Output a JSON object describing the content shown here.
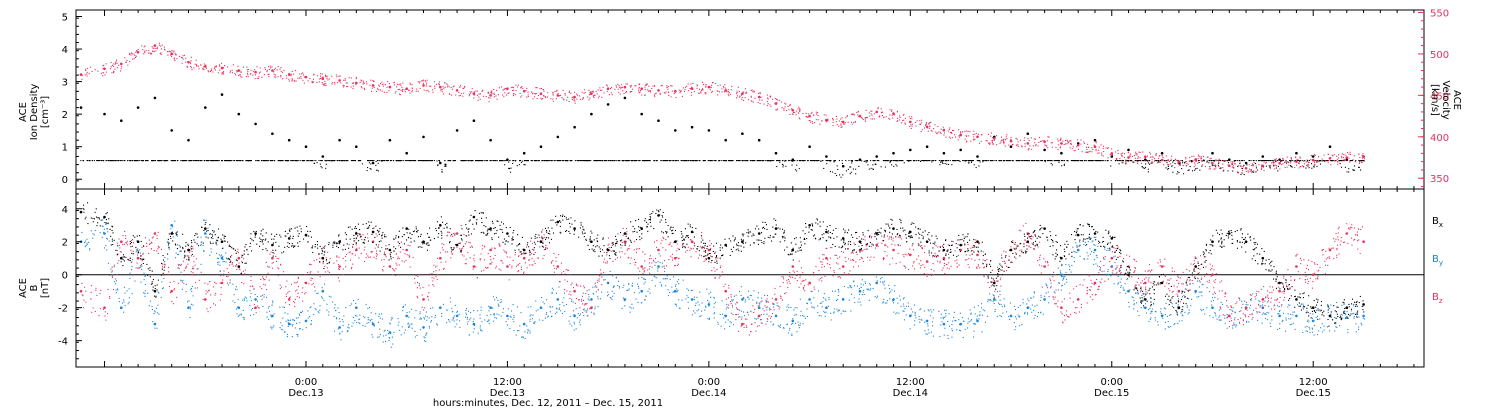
{
  "colors": {
    "black": "#000000",
    "pink": "#e8305c",
    "blue": "#1a85d9"
  },
  "xaxis": {
    "title": "hours:minutes, Dec. 12, 2011 – Dec. 15, 2011",
    "ticks": [
      {
        "t": 12,
        "time": "0:00",
        "date": "Dec.13"
      },
      {
        "t": 24,
        "time": "12:00",
        "date": "Dec.13"
      },
      {
        "t": 36,
        "time": "0:00",
        "date": "Dec.14"
      },
      {
        "t": 48,
        "time": "12:00",
        "date": "Dec.14"
      },
      {
        "t": 60,
        "time": "0:00",
        "date": "Dec.15"
      },
      {
        "t": 72,
        "time": "12:00",
        "date": "Dec.15"
      }
    ]
  },
  "chart_data": [
    {
      "type": "scatter",
      "panel": "top",
      "xlim": [
        -1.7,
        78.6
      ],
      "ylabel_left": [
        "ACE",
        "Ion Density",
        "[cm⁻³]"
      ],
      "ylim_left": [
        -0.3,
        5.2
      ],
      "yticks_left": [
        0,
        1,
        2,
        3,
        4,
        5
      ],
      "ylabel_right": [
        "ACE",
        "Velocity",
        "[km/s]"
      ],
      "ylim_right": [
        337,
        553
      ],
      "yticks_right": [
        350,
        400,
        450,
        500,
        550
      ],
      "series": [
        {
          "axis": "left",
          "color": "black",
          "x": [
            -1.4,
            0,
            1,
            2,
            3,
            4,
            5,
            6,
            7,
            8,
            9,
            10,
            11,
            12,
            13,
            14,
            15,
            16,
            17,
            18,
            19,
            20,
            21,
            22,
            23,
            24,
            25,
            26,
            27,
            28,
            29,
            30,
            31,
            32,
            33,
            34,
            35,
            36,
            37,
            38,
            39,
            40,
            41,
            42,
            43,
            44,
            45,
            46,
            47,
            48,
            49,
            50,
            51,
            52,
            53,
            54,
            55,
            56,
            57,
            58,
            59,
            60,
            61,
            62,
            63,
            64,
            65,
            66,
            67,
            68,
            69,
            70,
            71,
            72,
            73,
            74,
            75
          ],
          "y": [
            2.2,
            2.0,
            1.8,
            2.2,
            2.5,
            1.5,
            1.2,
            2.2,
            2.6,
            2.0,
            1.7,
            1.4,
            1.2,
            1.0,
            0.7,
            1.2,
            1.0,
            0.5,
            1.2,
            0.8,
            1.3,
            0.5,
            1.5,
            1.8,
            1.2,
            0.6,
            0.8,
            1.0,
            1.3,
            1.6,
            2.0,
            2.3,
            2.5,
            2.0,
            1.8,
            1.5,
            1.6,
            1.5,
            1.2,
            1.4,
            1.2,
            0.8,
            0.6,
            1.0,
            0.7,
            0.4,
            0.6,
            0.7,
            0.8,
            0.9,
            1.0,
            0.8,
            0.9,
            0.7,
            1.3,
            1.0,
            1.4,
            0.9,
            0.8,
            1.1,
            1.2,
            0.7,
            0.9,
            0.6,
            0.8,
            0.5,
            0.6,
            0.8,
            0.6,
            0.5,
            0.7,
            0.6,
            0.8,
            0.7,
            1.0,
            0.6,
            0.7
          ]
        },
        {
          "axis": "right",
          "color": "pink",
          "x": [
            -1.4,
            0,
            1,
            2,
            3,
            4,
            5,
            6,
            7,
            8,
            9,
            10,
            11,
            12,
            13,
            14,
            15,
            16,
            17,
            18,
            19,
            20,
            21,
            22,
            23,
            24,
            25,
            26,
            27,
            28,
            29,
            30,
            31,
            32,
            33,
            34,
            35,
            36,
            37,
            38,
            39,
            40,
            41,
            42,
            43,
            44,
            45,
            46,
            47,
            48,
            49,
            50,
            51,
            52,
            53,
            54,
            55,
            56,
            57,
            58,
            59,
            60,
            61,
            62,
            63,
            64,
            65,
            66,
            67,
            68,
            69,
            70,
            71,
            72,
            73,
            74,
            75
          ],
          "y": [
            475,
            482,
            488,
            502,
            510,
            500,
            490,
            485,
            483,
            480,
            478,
            480,
            475,
            472,
            470,
            468,
            465,
            462,
            460,
            458,
            462,
            460,
            456,
            452,
            450,
            458,
            455,
            452,
            450,
            448,
            452,
            458,
            460,
            458,
            456,
            455,
            458,
            460,
            456,
            452,
            448,
            440,
            432,
            425,
            420,
            418,
            425,
            430,
            428,
            418,
            412,
            408,
            402,
            400,
            398,
            395,
            392,
            394,
            392,
            390,
            388,
            380,
            375,
            376,
            372,
            370,
            372,
            368,
            365,
            362,
            365,
            368,
            370,
            372,
            374,
            375,
            376
          ]
        }
      ]
    },
    {
      "type": "scatter",
      "panel": "bottom",
      "xlim": [
        -1.7,
        78.6
      ],
      "ylabel_left": [
        "ACE",
        "B",
        "[nT]"
      ],
      "ylim_left": [
        -5.6,
        5.2
      ],
      "yticks_left": [
        -4,
        -2,
        0,
        2,
        4
      ],
      "legend": [
        "Bx",
        "By",
        "Bz"
      ],
      "legend_position": "right",
      "series": [
        {
          "name": "Bx",
          "color": "black",
          "x": [
            -1.4,
            0,
            1,
            2,
            3,
            4,
            5,
            6,
            7,
            8,
            9,
            10,
            11,
            12,
            13,
            14,
            15,
            16,
            17,
            18,
            19,
            20,
            21,
            22,
            23,
            24,
            25,
            26,
            27,
            28,
            29,
            30,
            31,
            32,
            33,
            34,
            35,
            36,
            37,
            38,
            39,
            40,
            41,
            42,
            43,
            44,
            45,
            46,
            47,
            48,
            49,
            50,
            51,
            52,
            53,
            54,
            55,
            56,
            57,
            58,
            59,
            60,
            61,
            62,
            63,
            64,
            65,
            66,
            67,
            68,
            69,
            70,
            71,
            72,
            73,
            74,
            75
          ],
          "y": [
            3.8,
            3.5,
            1.0,
            2.0,
            -1.0,
            2.5,
            1.5,
            2.8,
            2.0,
            0.5,
            2.5,
            1.8,
            2.2,
            2.4,
            1.0,
            2.0,
            2.5,
            2.6,
            1.5,
            2.8,
            2.0,
            3.0,
            1.8,
            3.5,
            2.8,
            2.5,
            1.5,
            2.0,
            3.2,
            2.8,
            2.0,
            1.5,
            2.5,
            2.8,
            3.6,
            2.0,
            2.6,
            1.0,
            1.8,
            2.0,
            2.5,
            2.8,
            1.5,
            3.0,
            2.6,
            2.2,
            2.0,
            2.5,
            2.8,
            2.6,
            2.0,
            1.5,
            1.8,
            2.0,
            -0.5,
            1.5,
            2.0,
            2.8,
            1.0,
            2.4,
            2.5,
            2.2,
            0.0,
            -1.5,
            -0.5,
            -2.0,
            0.5,
            2.0,
            2.5,
            2.0,
            1.0,
            -0.5,
            -1.5,
            -2.0,
            -2.5,
            -2.0,
            -1.8
          ]
        },
        {
          "name": "By",
          "color": "blue",
          "x": [
            -1.4,
            0,
            1,
            2,
            3,
            4,
            5,
            6,
            7,
            8,
            9,
            10,
            11,
            12,
            13,
            14,
            15,
            16,
            17,
            18,
            19,
            20,
            21,
            22,
            23,
            24,
            25,
            26,
            27,
            28,
            29,
            30,
            31,
            32,
            33,
            34,
            35,
            36,
            37,
            38,
            39,
            40,
            41,
            42,
            43,
            44,
            45,
            46,
            47,
            48,
            49,
            50,
            51,
            52,
            53,
            54,
            55,
            56,
            57,
            58,
            59,
            60,
            61,
            62,
            63,
            64,
            65,
            66,
            67,
            68,
            69,
            70,
            71,
            72,
            73,
            74,
            75
          ],
          "y": [
            2.0,
            2.5,
            -2.0,
            1.0,
            -3.0,
            3.0,
            -2.0,
            2.5,
            1.0,
            -2.0,
            -1.5,
            -2.5,
            -3.0,
            -2.8,
            -1.0,
            -3.2,
            -2.0,
            -3.0,
            -3.5,
            -2.5,
            -3.2,
            -2.0,
            -2.5,
            -3.0,
            -2.0,
            -2.5,
            -3.0,
            -2.0,
            -1.5,
            -2.5,
            -1.5,
            -0.5,
            -1.5,
            -1.0,
            0.5,
            -1.0,
            -1.5,
            -1.8,
            -2.5,
            -1.5,
            -2.0,
            -2.5,
            -2.8,
            -1.5,
            -2.0,
            -1.5,
            -1.0,
            -0.5,
            -1.5,
            -2.5,
            -2.8,
            -3.0,
            -3.0,
            -2.8,
            -1.5,
            -2.5,
            -2.0,
            -1.5,
            0.0,
            1.5,
            1.5,
            0.5,
            -1.0,
            -2.0,
            -2.5,
            -2.0,
            -1.0,
            -2.0,
            -2.5,
            -2.0,
            -2.0,
            -2.5,
            -2.5,
            -2.8,
            -2.5,
            -2.6,
            -2.5
          ]
        },
        {
          "name": "Bz",
          "color": "pink",
          "x": [
            -1.4,
            0,
            1,
            2,
            3,
            4,
            5,
            6,
            7,
            8,
            9,
            10,
            11,
            12,
            13,
            14,
            15,
            16,
            17,
            18,
            19,
            20,
            21,
            22,
            23,
            24,
            25,
            26,
            27,
            28,
            29,
            30,
            31,
            32,
            33,
            34,
            35,
            36,
            37,
            38,
            39,
            40,
            41,
            42,
            43,
            44,
            45,
            46,
            47,
            48,
            49,
            50,
            51,
            52,
            53,
            54,
            55,
            56,
            57,
            58,
            59,
            60,
            61,
            62,
            63,
            64,
            65,
            66,
            67,
            68,
            69,
            70,
            71,
            72,
            73,
            74,
            75
          ],
          "y": [
            -1.0,
            -2.0,
            2.0,
            1.0,
            2.5,
            -1.0,
            1.5,
            -1.5,
            -0.5,
            1.0,
            -2.0,
            1.0,
            -1.5,
            -0.5,
            1.0,
            0.5,
            1.5,
            2.0,
            0.5,
            1.5,
            -1.5,
            1.0,
            2.5,
            0.5,
            1.5,
            0.5,
            1.0,
            2.0,
            0.5,
            -1.0,
            -2.0,
            1.5,
            2.0,
            0.5,
            1.5,
            1.0,
            2.0,
            1.5,
            -1.0,
            -3.0,
            -2.5,
            -1.5,
            0.5,
            -0.5,
            1.0,
            0.5,
            1.5,
            1.8,
            1.5,
            1.2,
            0.8,
            1.0,
            1.5,
            1.2,
            -0.5,
            1.5,
            2.5,
            0.5,
            -2.0,
            -1.5,
            -0.5,
            1.0,
            0.5,
            -0.5,
            0.5,
            -1.0,
            0.5,
            0.0,
            -2.5,
            -2.0,
            -1.5,
            -1.0,
            0.5,
            0.0,
            1.5,
            2.5,
            2.0
          ]
        }
      ]
    }
  ]
}
